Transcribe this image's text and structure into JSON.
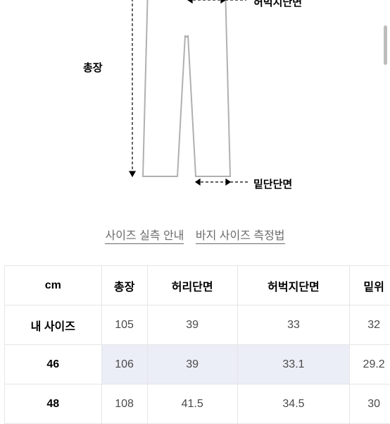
{
  "diagram": {
    "labels": {
      "thigh": "허벅지단면",
      "total_length": "총장",
      "hem": "밑단단면"
    },
    "colors": {
      "outline": "#b0b0b0",
      "dash": "#000000",
      "bg": "#ffffff"
    }
  },
  "links": {
    "size_guide": "사이즈 실측 안내",
    "measure_guide": "바지 사이즈 측정법"
  },
  "table": {
    "unit_header": "cm",
    "columns": [
      "총장",
      "허리단면",
      "허벅지단면",
      "밑위"
    ],
    "rows": [
      {
        "label": "내 사이즈",
        "values": [
          "105",
          "39",
          "33",
          "32"
        ],
        "highlight": false
      },
      {
        "label": "46",
        "values": [
          "106",
          "39",
          "33.1",
          "29.2"
        ],
        "highlight": true,
        "no_hl_cols": [
          3
        ]
      },
      {
        "label": "48",
        "values": [
          "108",
          "41.5",
          "34.5",
          "30"
        ],
        "highlight": false
      }
    ]
  }
}
